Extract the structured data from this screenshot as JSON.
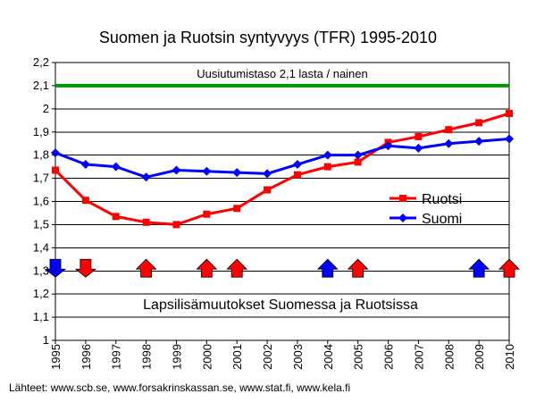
{
  "chart_data": {
    "type": "line",
    "title": "Suomen ja Ruotsin syntyvyys (TFR) 1995-2010",
    "x": [
      "1995",
      "1996",
      "1997",
      "1998",
      "1999",
      "2000",
      "2001",
      "2002",
      "2003",
      "2004",
      "2005",
      "2006",
      "2007",
      "2008",
      "2009",
      "2010"
    ],
    "y_ticks": [
      "1",
      "1,1",
      "1,2",
      "1,3",
      "1,4",
      "1,5",
      "1,6",
      "1,7",
      "1,8",
      "1,9",
      "2",
      "2,1",
      "2,2"
    ],
    "ylim": [
      1,
      2.2
    ],
    "grid": true,
    "series": [
      {
        "name": "Ruotsi",
        "color": "#ff0000",
        "marker": "square",
        "values": [
          1.735,
          1.605,
          1.535,
          1.51,
          1.5,
          1.545,
          1.57,
          1.65,
          1.715,
          1.75,
          1.77,
          1.855,
          1.88,
          1.91,
          1.94,
          1.98
        ]
      },
      {
        "name": "Suomi",
        "color": "#0000ff",
        "marker": "diamond",
        "values": [
          1.81,
          1.76,
          1.75,
          1.705,
          1.735,
          1.73,
          1.725,
          1.72,
          1.76,
          1.8,
          1.8,
          1.84,
          1.83,
          1.85,
          1.86,
          1.87
        ]
      }
    ],
    "reference_line": {
      "value": 2.1,
      "label": "Uusiutumistaso 2,1 lasta / nainen",
      "color": "#009900"
    },
    "arrows": [
      {
        "year": "1995",
        "direction": "down",
        "country": "Suomi",
        "color": "#0000ff"
      },
      {
        "year": "1996",
        "direction": "down",
        "country": "Ruotsi",
        "color": "#ff0000"
      },
      {
        "year": "1998",
        "direction": "up",
        "country": "Ruotsi",
        "color": "#ff0000"
      },
      {
        "year": "2000",
        "direction": "up",
        "country": "Ruotsi",
        "color": "#ff0000"
      },
      {
        "year": "2001",
        "direction": "up",
        "country": "Ruotsi",
        "color": "#ff0000"
      },
      {
        "year": "2004",
        "direction": "up",
        "country": "Suomi",
        "color": "#0000ff"
      },
      {
        "year": "2005",
        "direction": "up",
        "country": "Ruotsi",
        "color": "#ff0000"
      },
      {
        "year": "2009",
        "direction": "up",
        "country": "Suomi",
        "color": "#0000ff"
      },
      {
        "year": "2010",
        "direction": "up",
        "country": "Ruotsi",
        "color": "#ff0000"
      }
    ],
    "arrow_level": 1.3,
    "annotation": "Lapsilisämuutokset Suomessa ja Ruotsissa",
    "legend_position": "right-middle",
    "source": "Lähteet: www.scb.se, www.forsakrinskassan.se, www.stat.fi, www.kela.fi"
  }
}
